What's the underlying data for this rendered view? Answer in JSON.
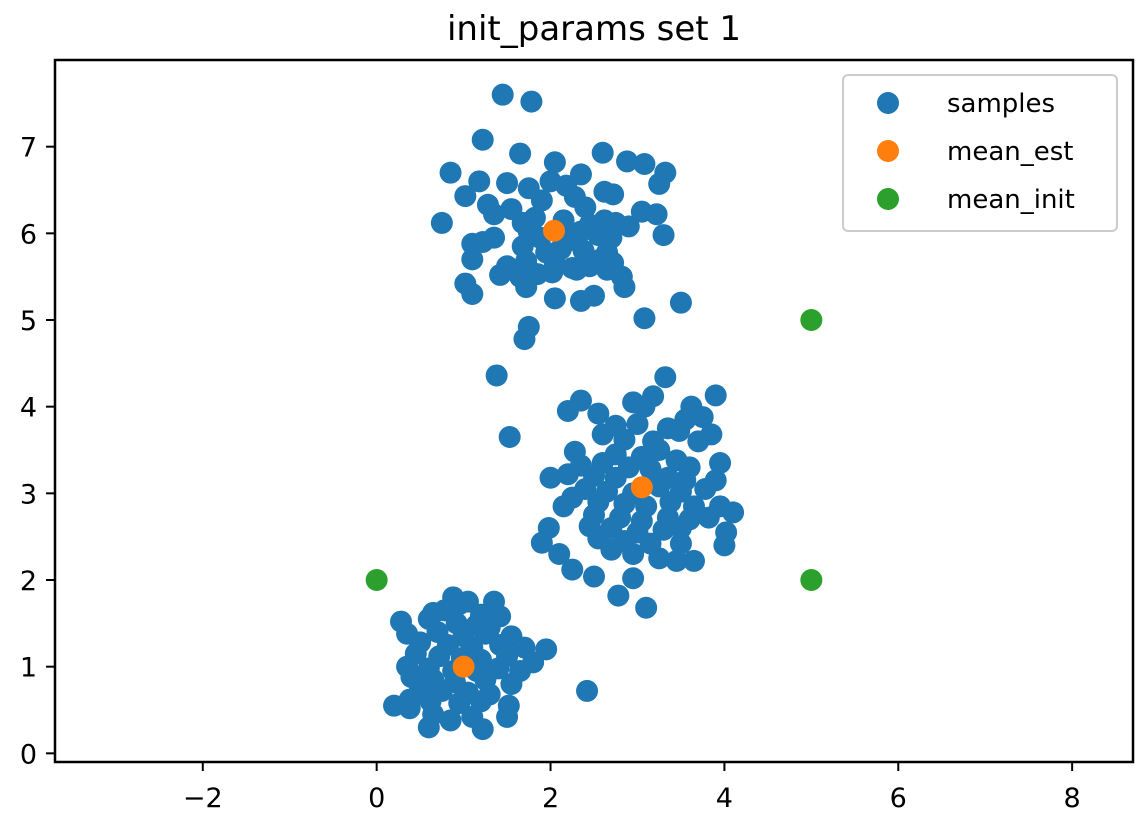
{
  "chart_data": {
    "type": "scatter",
    "title": "init_params set 1",
    "xlabel": "",
    "ylabel": "",
    "xlim": [
      -3.7,
      8.7
    ],
    "ylim": [
      -0.1,
      8.0
    ],
    "x_ticks": [
      -2,
      0,
      2,
      4,
      6,
      8
    ],
    "x_tick_labels": [
      "−2",
      "0",
      "2",
      "4",
      "6",
      "8"
    ],
    "y_ticks": [
      0,
      1,
      2,
      3,
      4,
      5,
      6,
      7
    ],
    "y_tick_labels": [
      "0",
      "1",
      "2",
      "3",
      "4",
      "5",
      "6",
      "7"
    ],
    "grid": false,
    "legend_position": "top-right",
    "series": [
      {
        "name": "samples",
        "color": "#1f77b4",
        "points": [
          [
            1.45,
            7.6
          ],
          [
            1.78,
            7.52
          ],
          [
            1.22,
            7.08
          ],
          [
            0.85,
            6.7
          ],
          [
            1.65,
            6.92
          ],
          [
            2.6,
            6.93
          ],
          [
            2.05,
            6.82
          ],
          [
            2.88,
            6.83
          ],
          [
            3.08,
            6.8
          ],
          [
            3.32,
            6.7
          ],
          [
            2.35,
            6.68
          ],
          [
            1.18,
            6.6
          ],
          [
            1.5,
            6.58
          ],
          [
            1.75,
            6.52
          ],
          [
            2.0,
            6.6
          ],
          [
            2.18,
            6.55
          ],
          [
            3.25,
            6.57
          ],
          [
            1.02,
            6.43
          ],
          [
            2.62,
            6.48
          ],
          [
            2.72,
            6.45
          ],
          [
            1.28,
            6.33
          ],
          [
            1.35,
            6.22
          ],
          [
            1.55,
            6.28
          ],
          [
            1.9,
            6.38
          ],
          [
            2.28,
            6.42
          ],
          [
            2.4,
            6.3
          ],
          [
            3.05,
            6.25
          ],
          [
            3.22,
            6.22
          ],
          [
            1.68,
            6.12
          ],
          [
            1.82,
            6.18
          ],
          [
            2.15,
            6.15
          ],
          [
            2.45,
            6.1
          ],
          [
            2.62,
            6.15
          ],
          [
            2.75,
            6.12
          ],
          [
            2.9,
            6.08
          ],
          [
            0.75,
            6.12
          ],
          [
            1.75,
            6.02
          ],
          [
            1.88,
            5.95
          ],
          [
            2.22,
            5.92
          ],
          [
            2.35,
            6.02
          ],
          [
            2.55,
            5.98
          ],
          [
            2.7,
            5.95
          ],
          [
            3.3,
            5.98
          ],
          [
            1.35,
            5.95
          ],
          [
            1.1,
            5.88
          ],
          [
            1.22,
            5.9
          ],
          [
            1.68,
            5.85
          ],
          [
            1.95,
            5.78
          ],
          [
            2.12,
            5.82
          ],
          [
            2.38,
            5.8
          ],
          [
            2.65,
            5.78
          ],
          [
            2.58,
            5.7
          ],
          [
            1.1,
            5.7
          ],
          [
            1.5,
            5.62
          ],
          [
            1.72,
            5.68
          ],
          [
            2.05,
            5.65
          ],
          [
            2.25,
            5.6
          ],
          [
            2.45,
            5.62
          ],
          [
            2.65,
            5.58
          ],
          [
            2.72,
            5.66
          ],
          [
            1.42,
            5.52
          ],
          [
            1.65,
            5.5
          ],
          [
            1.85,
            5.53
          ],
          [
            2.02,
            5.55
          ],
          [
            2.3,
            5.58
          ],
          [
            2.82,
            5.5
          ],
          [
            1.02,
            5.42
          ],
          [
            1.72,
            5.38
          ],
          [
            2.85,
            5.38
          ],
          [
            1.1,
            5.3
          ],
          [
            2.05,
            5.25
          ],
          [
            2.35,
            5.22
          ],
          [
            2.5,
            5.28
          ],
          [
            3.08,
            5.02
          ],
          [
            3.5,
            5.2
          ],
          [
            1.75,
            4.92
          ],
          [
            1.7,
            4.78
          ],
          [
            1.38,
            4.36
          ],
          [
            1.53,
            3.65
          ],
          [
            3.9,
            4.13
          ],
          [
            3.32,
            4.34
          ],
          [
            3.18,
            4.12
          ],
          [
            2.35,
            4.07
          ],
          [
            2.95,
            4.05
          ],
          [
            3.08,
            4.0
          ],
          [
            3.62,
            4.0
          ],
          [
            2.2,
            3.95
          ],
          [
            2.55,
            3.92
          ],
          [
            3.55,
            3.85
          ],
          [
            3.75,
            3.88
          ],
          [
            2.75,
            3.78
          ],
          [
            3.0,
            3.8
          ],
          [
            3.35,
            3.75
          ],
          [
            3.48,
            3.72
          ],
          [
            3.85,
            3.68
          ],
          [
            2.6,
            3.68
          ],
          [
            2.85,
            3.62
          ],
          [
            3.18,
            3.6
          ],
          [
            3.7,
            3.6
          ],
          [
            3.25,
            3.5
          ],
          [
            2.28,
            3.48
          ],
          [
            2.75,
            3.45
          ],
          [
            3.05,
            3.42
          ],
          [
            3.45,
            3.38
          ],
          [
            2.35,
            3.32
          ],
          [
            2.6,
            3.35
          ],
          [
            2.9,
            3.3
          ],
          [
            3.15,
            3.28
          ],
          [
            3.6,
            3.3
          ],
          [
            3.95,
            3.35
          ],
          [
            2.2,
            3.22
          ],
          [
            2.5,
            3.2
          ],
          [
            2.75,
            3.18
          ],
          [
            3.35,
            3.18
          ],
          [
            3.55,
            3.15
          ],
          [
            3.9,
            3.15
          ],
          [
            2.0,
            3.18
          ],
          [
            2.4,
            3.05
          ],
          [
            2.65,
            3.02
          ],
          [
            2.95,
            3.0
          ],
          [
            3.25,
            3.08
          ],
          [
            3.5,
            3.02
          ],
          [
            3.78,
            3.05
          ],
          [
            2.25,
            2.95
          ],
          [
            2.55,
            2.9
          ],
          [
            2.85,
            2.88
          ],
          [
            3.1,
            2.85
          ],
          [
            3.38,
            2.9
          ],
          [
            3.65,
            2.85
          ],
          [
            3.95,
            2.85
          ],
          [
            4.1,
            2.78
          ],
          [
            2.15,
            2.85
          ],
          [
            2.5,
            2.75
          ],
          [
            2.8,
            2.72
          ],
          [
            3.05,
            2.68
          ],
          [
            3.35,
            2.72
          ],
          [
            3.6,
            2.7
          ],
          [
            3.82,
            2.72
          ],
          [
            2.45,
            2.62
          ],
          [
            2.7,
            2.6
          ],
          [
            3.0,
            2.55
          ],
          [
            3.3,
            2.58
          ],
          [
            3.5,
            2.6
          ],
          [
            4.02,
            2.55
          ],
          [
            1.98,
            2.6
          ],
          [
            2.55,
            2.48
          ],
          [
            2.85,
            2.45
          ],
          [
            3.15,
            2.42
          ],
          [
            3.5,
            2.42
          ],
          [
            4.0,
            2.4
          ],
          [
            1.9,
            2.43
          ],
          [
            2.1,
            2.3
          ],
          [
            2.7,
            2.35
          ],
          [
            2.95,
            2.3
          ],
          [
            3.25,
            2.25
          ],
          [
            3.45,
            2.22
          ],
          [
            3.65,
            2.22
          ],
          [
            2.25,
            2.12
          ],
          [
            2.5,
            2.04
          ],
          [
            2.95,
            2.02
          ],
          [
            2.78,
            1.82
          ],
          [
            3.1,
            1.68
          ],
          [
            0.88,
            1.8
          ],
          [
            0.95,
            1.72
          ],
          [
            1.05,
            1.75
          ],
          [
            1.35,
            1.75
          ],
          [
            0.65,
            1.62
          ],
          [
            0.78,
            1.65
          ],
          [
            1.2,
            1.6
          ],
          [
            1.42,
            1.58
          ],
          [
            0.28,
            1.52
          ],
          [
            0.6,
            1.55
          ],
          [
            0.92,
            1.5
          ],
          [
            1.15,
            1.48
          ],
          [
            1.3,
            1.45
          ],
          [
            0.35,
            1.38
          ],
          [
            0.7,
            1.4
          ],
          [
            1.0,
            1.35
          ],
          [
            1.25,
            1.38
          ],
          [
            1.55,
            1.35
          ],
          [
            1.95,
            1.2
          ],
          [
            0.5,
            1.28
          ],
          [
            0.82,
            1.25
          ],
          [
            1.1,
            1.22
          ],
          [
            1.42,
            1.25
          ],
          [
            1.7,
            1.22
          ],
          [
            0.45,
            1.15
          ],
          [
            0.72,
            1.12
          ],
          [
            0.98,
            1.1
          ],
          [
            1.2,
            1.08
          ],
          [
            1.5,
            1.12
          ],
          [
            1.8,
            1.05
          ],
          [
            0.35,
            1.0
          ],
          [
            0.6,
            0.98
          ],
          [
            0.88,
            0.95
          ],
          [
            1.15,
            0.95
          ],
          [
            1.4,
            0.98
          ],
          [
            1.65,
            0.95
          ],
          [
            0.4,
            0.88
          ],
          [
            0.65,
            0.85
          ],
          [
            0.9,
            0.82
          ],
          [
            1.25,
            0.85
          ],
          [
            1.55,
            0.8
          ],
          [
            0.5,
            0.75
          ],
          [
            0.75,
            0.72
          ],
          [
            1.05,
            0.7
          ],
          [
            1.3,
            0.68
          ],
          [
            0.38,
            0.62
          ],
          [
            0.62,
            0.6
          ],
          [
            0.95,
            0.58
          ],
          [
            1.2,
            0.6
          ],
          [
            1.52,
            0.55
          ],
          [
            0.2,
            0.55
          ],
          [
            0.38,
            0.52
          ],
          [
            0.65,
            0.45
          ],
          [
            0.85,
            0.38
          ],
          [
            1.1,
            0.42
          ],
          [
            1.5,
            0.42
          ],
          [
            0.6,
            0.3
          ],
          [
            1.22,
            0.28
          ],
          [
            2.42,
            0.72
          ]
        ]
      },
      {
        "name": "mean_est",
        "color": "#ff7f0e",
        "points": [
          [
            2.04,
            6.03
          ],
          [
            3.05,
            3.07
          ],
          [
            1.0,
            1.0
          ]
        ]
      },
      {
        "name": "mean_init",
        "color": "#2ca02c",
        "points": [
          [
            5.0,
            5.0
          ],
          [
            0.0,
            2.0
          ],
          [
            5.0,
            2.0
          ]
        ]
      }
    ]
  }
}
